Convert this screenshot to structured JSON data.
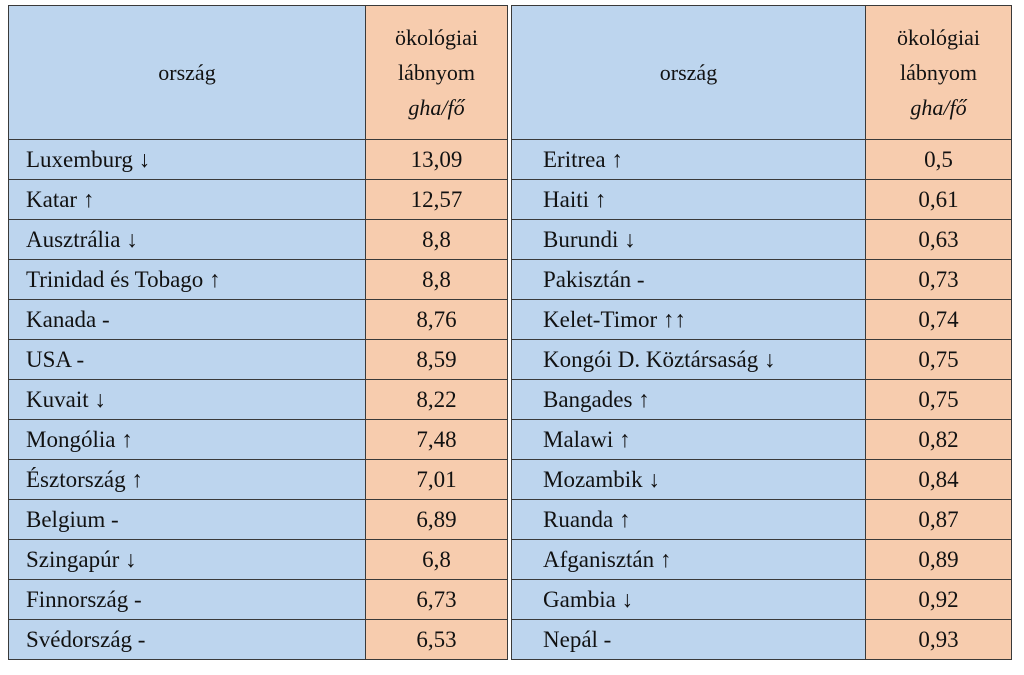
{
  "headers": {
    "country": "ország",
    "footprint_line1": "ökológiai",
    "footprint_line2": "lábnyom",
    "unit": "gha/fő"
  },
  "left_rows": [
    {
      "country": "Luxemburg ↓",
      "value": "13,09"
    },
    {
      "country": "Katar ↑",
      "value": "12,57"
    },
    {
      "country": "Ausztrália ↓",
      "value": "8,8"
    },
    {
      "country": "Trinidad és Tobago ↑",
      "value": "8,8"
    },
    {
      "country": "Kanada -",
      "value": "8,76"
    },
    {
      "country": "USA -",
      "value": "8,59"
    },
    {
      "country": "Kuvait ↓",
      "value": "8,22"
    },
    {
      "country": "Mongólia ↑",
      "value": "7,48"
    },
    {
      "country": "Észtország ↑",
      "value": "7,01"
    },
    {
      "country": "Belgium -",
      "value": "6,89"
    },
    {
      "country": "Szingapúr ↓",
      "value": "6,8"
    },
    {
      "country": "Finnország -",
      "value": "6,73"
    },
    {
      "country": "Svédország -",
      "value": "6,53"
    }
  ],
  "right_rows": [
    {
      "country": "Eritrea ↑",
      "value": "0,5"
    },
    {
      "country": "Haiti ↑",
      "value": "0,61"
    },
    {
      "country": "Burundi ↓",
      "value": "0,63"
    },
    {
      "country": "Pakisztán -",
      "value": "0,73"
    },
    {
      "country": "Kelet-Timor ↑↑",
      "value": "0,74"
    },
    {
      "country": "Kongói D. Köztársaság ↓",
      "value": "0,75"
    },
    {
      "country": "Bangades ↑",
      "value": "0,75"
    },
    {
      "country": "Malawi ↑",
      "value": "0,82"
    },
    {
      "country": "Mozambik ↓",
      "value": "0,84"
    },
    {
      "country": "Ruanda ↑",
      "value": "0,87"
    },
    {
      "country": "Afganisztán ↑",
      "value": "0,89"
    },
    {
      "country": "Gambia ↓",
      "value": "0,92"
    },
    {
      "country": "Nepál -",
      "value": "0,93"
    }
  ],
  "colors": {
    "country_column": "#bdd5ee",
    "value_column": "#f7ccae",
    "border": "#3a3a3a"
  }
}
